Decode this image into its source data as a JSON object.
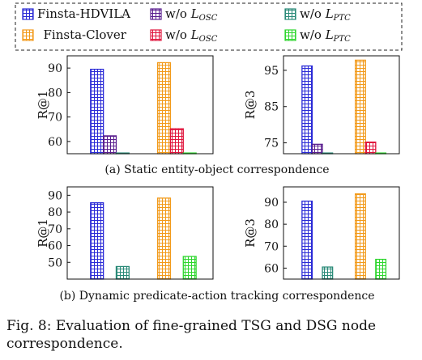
{
  "legend": [
    {
      "label": "Finsta-HDVILA",
      "base": "",
      "sub": "",
      "color": "#2b2bd6"
    },
    {
      "label": "w/o L",
      "base": "w/o L",
      "sub": "OSC",
      "color": "#5a1f8f"
    },
    {
      "label": "w/o L",
      "base": "w/o L",
      "sub": "PTC",
      "color": "#2a8a78"
    },
    {
      "label": "Finsta-Clover",
      "base": "",
      "sub": "",
      "color": "#f29a1a"
    },
    {
      "label": "w/o L",
      "base": "w/o L",
      "sub": "OSC",
      "color": "#e0143c"
    },
    {
      "label": "w/o L",
      "base": "w/o L",
      "sub": "PTC",
      "color": "#2ed62e"
    }
  ],
  "sub_captions": {
    "a": "(a) Static entity-object correspondence",
    "b": "(b) Dynamic predicate-action tracking correspondence"
  },
  "caption": "Fig. 8: Evaluation of fine-grained TSG and DSG node correspondence.",
  "chart_data": [
    {
      "type": "bar",
      "panel": "a-left",
      "ylabel": "R@1",
      "ylim": [
        55,
        95
      ],
      "yticks": [
        60,
        70,
        80,
        90
      ],
      "groups": [
        "HDVILA",
        "Clover"
      ],
      "bars": [
        {
          "group": 0,
          "slot": 0,
          "series": 0,
          "value": 89.5
        },
        {
          "group": 0,
          "slot": 1,
          "series": 1,
          "value": 62.3
        },
        {
          "group": 0,
          "slot": 2,
          "series": 2,
          "value": 55.3
        },
        {
          "group": 1,
          "slot": 0,
          "series": 3,
          "value": 92.2
        },
        {
          "group": 1,
          "slot": 1,
          "series": 4,
          "value": 65.2
        },
        {
          "group": 1,
          "slot": 2,
          "series": 5,
          "value": 55.3
        }
      ]
    },
    {
      "type": "bar",
      "panel": "a-right",
      "ylabel": "R@3",
      "ylim": [
        72,
        99
      ],
      "yticks": [
        75,
        85,
        95
      ],
      "groups": [
        "HDVILA",
        "Clover"
      ],
      "bars": [
        {
          "group": 0,
          "slot": 0,
          "series": 0,
          "value": 96.2
        },
        {
          "group": 0,
          "slot": 1,
          "series": 1,
          "value": 74.6
        },
        {
          "group": 0,
          "slot": 2,
          "series": 2,
          "value": 72.2
        },
        {
          "group": 1,
          "slot": 0,
          "series": 3,
          "value": 97.8
        },
        {
          "group": 1,
          "slot": 1,
          "series": 4,
          "value": 75.2
        },
        {
          "group": 1,
          "slot": 2,
          "series": 5,
          "value": 72.2
        }
      ]
    },
    {
      "type": "bar",
      "panel": "b-left",
      "ylabel": "R@1",
      "ylim": [
        40,
        95
      ],
      "yticks": [
        50,
        60,
        70,
        80,
        90
      ],
      "groups": [
        "HDVILA",
        "Clover"
      ],
      "bars": [
        {
          "group": 0,
          "slot": 0,
          "series": 0,
          "value": 85.5
        },
        {
          "group": 0,
          "slot": 1,
          "series": 1,
          "value": 40.0
        },
        {
          "group": 0,
          "slot": 2,
          "series": 2,
          "value": 47.5
        },
        {
          "group": 1,
          "slot": 0,
          "series": 3,
          "value": 88.3
        },
        {
          "group": 1,
          "slot": 1,
          "series": 4,
          "value": 40.0
        },
        {
          "group": 1,
          "slot": 2,
          "series": 5,
          "value": 53.5
        }
      ]
    },
    {
      "type": "bar",
      "panel": "b-right",
      "ylabel": "R@3",
      "ylim": [
        55,
        97
      ],
      "yticks": [
        60,
        70,
        80,
        90
      ],
      "groups": [
        "HDVILA",
        "Clover"
      ],
      "bars": [
        {
          "group": 0,
          "slot": 0,
          "series": 0,
          "value": 90.5
        },
        {
          "group": 0,
          "slot": 1,
          "series": 1,
          "value": 55.0
        },
        {
          "group": 0,
          "slot": 2,
          "series": 2,
          "value": 60.5
        },
        {
          "group": 1,
          "slot": 0,
          "series": 3,
          "value": 93.8
        },
        {
          "group": 1,
          "slot": 1,
          "series": 4,
          "value": 55.0
        },
        {
          "group": 1,
          "slot": 2,
          "series": 5,
          "value": 64.0
        }
      ]
    }
  ]
}
